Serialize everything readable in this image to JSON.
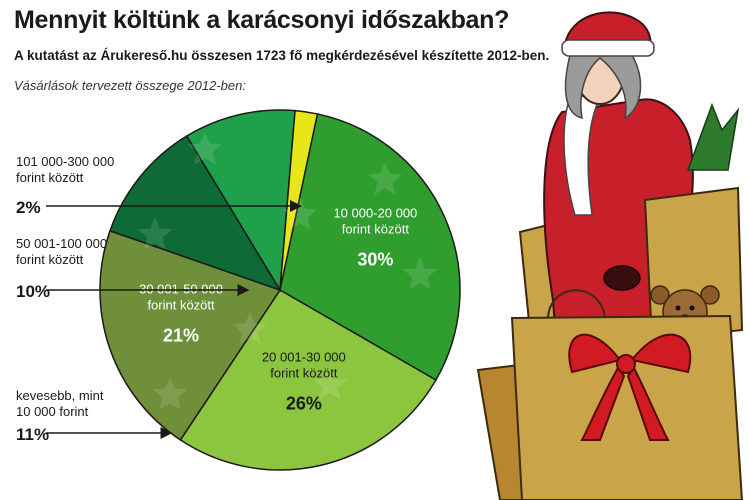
{
  "title": "Mennyit költünk a karácsonyi időszakban?",
  "subtitle": "A kutatást az Árukereső.hu összesen 1723 fő megkérdezésével készítette 2012-ben.",
  "caption": "Vásárlások tervezett összege 2012-ben:",
  "chart_data": {
    "type": "pie",
    "title": "Mennyit költünk a karácsonyi időszakban?",
    "start_angle_deg": -78,
    "slices": [
      {
        "label_lines": [
          "10 000-20 000",
          "forint között"
        ],
        "value": 30,
        "pct_text": "30%",
        "color": "#2f9e2f",
        "label_pos": "inside"
      },
      {
        "label_lines": [
          "20 001-30 000",
          "forint között"
        ],
        "value": 26,
        "pct_text": "26%",
        "color": "#8cc63f",
        "label_pos": "inside"
      },
      {
        "label_lines": [
          "30 001-50 000",
          "forint között"
        ],
        "value": 21,
        "pct_text": "21%",
        "color": "#6f8f3a",
        "label_pos": "inside"
      },
      {
        "label_lines": [
          "kevesebb, mint",
          "10 000 forint"
        ],
        "value": 11,
        "pct_text": "11%",
        "color": "#0f6b35",
        "label_pos": "left"
      },
      {
        "label_lines": [
          "50 001-100 000",
          "forint között"
        ],
        "value": 10,
        "pct_text": "10%",
        "color": "#20a04a",
        "label_pos": "left"
      },
      {
        "label_lines": [
          "101 000-300 000",
          "forint között"
        ],
        "value": 2,
        "pct_text": "2%",
        "color": "#e6e619",
        "label_pos": "left"
      }
    ]
  }
}
